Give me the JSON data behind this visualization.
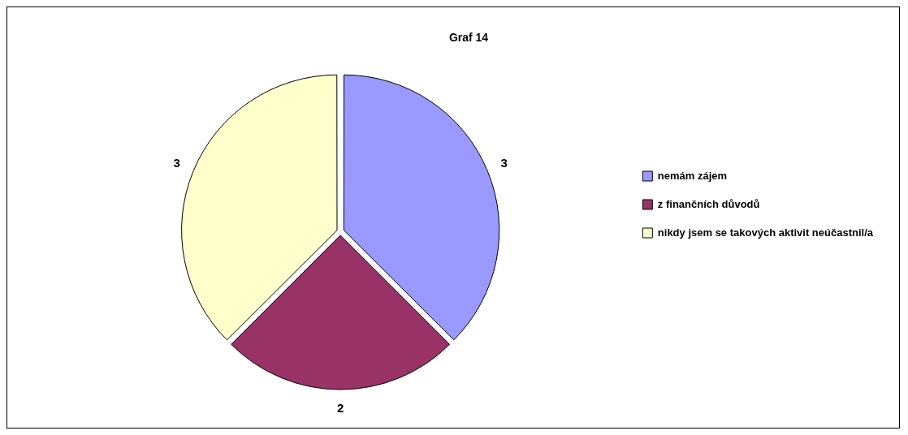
{
  "chart_data": {
    "type": "pie",
    "title": "Graf 14",
    "categories": [
      "nemám zájem",
      "z finančních důvodů",
      "nikdy jsem se takových aktivit neúčastnil/a"
    ],
    "values": [
      3,
      2,
      3
    ],
    "colors": [
      "#9999ff",
      "#993366",
      "#ffffcc"
    ],
    "data_labels": true,
    "legend": "right"
  }
}
